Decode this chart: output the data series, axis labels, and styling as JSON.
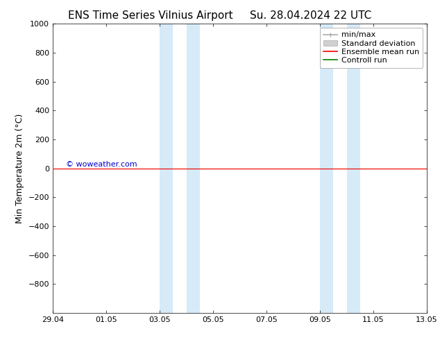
{
  "title_left": "ENS Time Series Vilnius Airport",
  "title_right": "Su. 28.04.2024 22 UTC",
  "ylabel": "Min Temperature 2m (°C)",
  "ylim_top": -1000,
  "ylim_bottom": 1000,
  "yticks": [
    -800,
    -600,
    -400,
    -200,
    0,
    200,
    400,
    600,
    800,
    1000
  ],
  "x_numeric_start": 0,
  "x_numeric_end": 14,
  "xtick_positions": [
    0,
    2,
    4,
    6,
    8,
    10,
    12,
    14
  ],
  "xtick_labels": [
    "29.04",
    "01.05",
    "03.05",
    "05.05",
    "07.05",
    "09.05",
    "11.05",
    "13.05"
  ],
  "shaded_bands": [
    [
      4.0,
      4.5
    ],
    [
      5.0,
      5.5
    ],
    [
      10.0,
      10.5
    ],
    [
      11.0,
      11.5
    ]
  ],
  "shaded_color": "#d6eaf8",
  "shaded_alpha": 1.0,
  "control_run_y": 0,
  "ensemble_mean_y": 0,
  "control_run_color": "#008000",
  "ensemble_mean_color": "#ff0000",
  "minmax_color": "#aaaaaa",
  "std_dev_color": "#d0d0d0",
  "watermark": "© woweather.com",
  "watermark_color": "#0000cc",
  "watermark_data_x": 0.5,
  "watermark_data_y": 50,
  "background_color": "#ffffff",
  "plot_bg_color": "#ffffff",
  "legend_labels": [
    "min/max",
    "Standard deviation",
    "Ensemble mean run",
    "Controll run"
  ],
  "font_size": 9,
  "title_font_size": 11,
  "tick_font_size": 8
}
